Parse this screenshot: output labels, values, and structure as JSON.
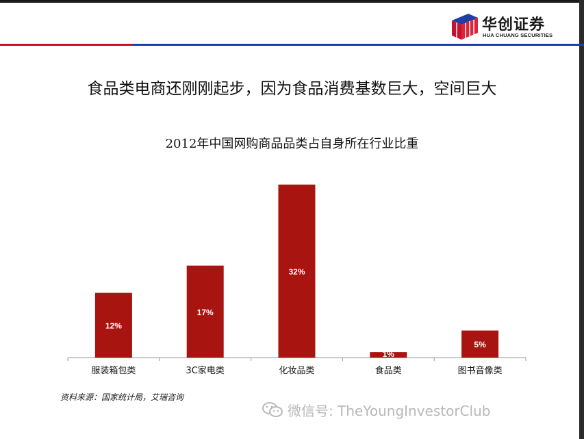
{
  "header": {
    "logo_cn": "华创证券",
    "logo_en": "HUA CHUANG SECURITIES",
    "logo_icon": "stacked-cube-logo-icon",
    "rule_colors": {
      "left": "#c8102e",
      "right": "#1f3fa6"
    }
  },
  "headline": "食品类电商还刚刚起步，因为食品消费基数巨大，空间巨大",
  "chart_data": {
    "type": "bar",
    "title": "2012年中国网购商品品类占自身所在行业比重",
    "categories": [
      "服装箱包类",
      "3C家电类",
      "化妆品类",
      "食品类",
      "图书音像类"
    ],
    "values": [
      12,
      17,
      32,
      1,
      5
    ],
    "value_labels": [
      "12%",
      "17%",
      "32%",
      "1%",
      "5%"
    ],
    "unit": "%",
    "ylim": [
      0,
      33
    ],
    "grid": false,
    "legend": "none",
    "bar_color": "#a81410",
    "label_color": "#ffffff"
  },
  "source": "资料来源：国家统计局，艾瑞咨询",
  "watermark": {
    "icon": "wechat-icon",
    "text": "微信号: TheYoungInvestorClub"
  }
}
